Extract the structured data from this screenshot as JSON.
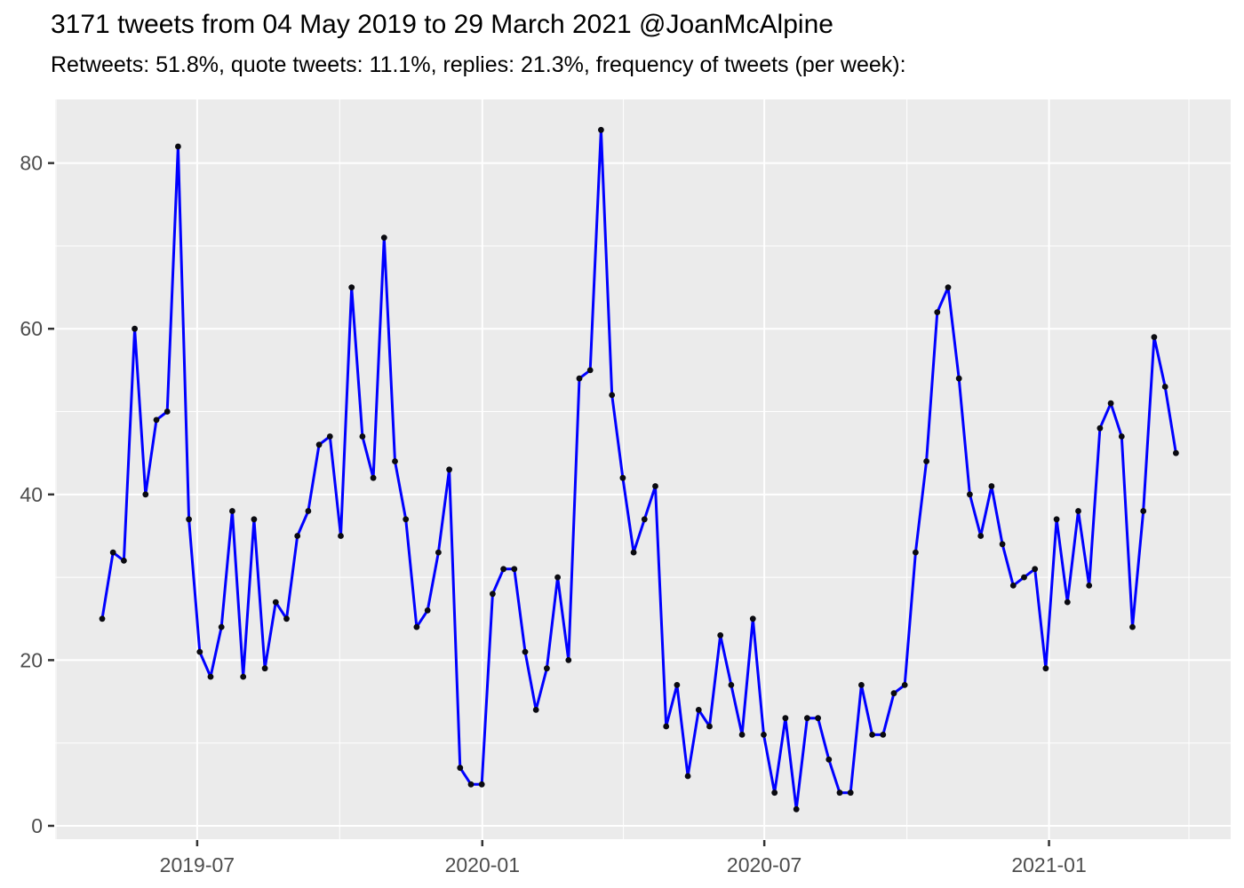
{
  "header": {
    "title": "3171 tweets from 04 May 2019 to 29 March 2021 @JoanMcAlpine",
    "subtitle": "Retweets: 51.8%, quote tweets: 11.1%, replies: 21.3%, frequency of tweets (per week):"
  },
  "chart_data": {
    "type": "line",
    "title": "3171 tweets from 04 May 2019 to 29 March 2021 @JoanMcAlpine",
    "subtitle": "Retweets: 51.8%, quote tweets: 11.1%, replies: 21.3%, frequency of tweets (per week):",
    "xlabel": "",
    "ylabel": "",
    "x_unit": "week index from first plotted week (weekly bins, 04 May 2019 to 29 March 2021)",
    "series": [
      {
        "name": "tweets per week",
        "values": [
          25,
          33,
          32,
          60,
          40,
          49,
          50,
          82,
          37,
          21,
          18,
          24,
          38,
          18,
          37,
          19,
          27,
          25,
          35,
          38,
          46,
          47,
          35,
          65,
          47,
          42,
          71,
          44,
          37,
          24,
          26,
          33,
          43,
          7,
          5,
          5,
          28,
          31,
          31,
          21,
          14,
          19,
          30,
          20,
          54,
          55,
          84,
          52,
          42,
          33,
          37,
          41,
          12,
          17,
          6,
          14,
          12,
          23,
          17,
          11,
          25,
          11,
          4,
          13,
          2,
          13,
          13,
          8,
          4,
          4,
          17,
          11,
          11,
          16,
          17,
          33,
          44,
          62,
          65,
          54,
          40,
          35,
          41,
          34,
          29,
          30,
          31,
          19,
          37,
          27,
          38,
          29,
          48,
          51,
          47,
          24,
          38,
          59,
          53,
          45
        ]
      }
    ],
    "x_axis": {
      "major_ticks": [
        {
          "label": "2019-07",
          "week": 8.76
        },
        {
          "label": "2020-01",
          "week": 35.05
        },
        {
          "label": "2020-07",
          "week": 61.05
        },
        {
          "label": "2021-01",
          "week": 87.3
        }
      ],
      "minor_gridline_weeks": [
        -4.26,
        21.9,
        48.06,
        74.2,
        100.2
      ],
      "range_weeks": [
        -4.34,
        104.05
      ]
    },
    "y_axis": {
      "major_ticks": [
        {
          "label": "0",
          "value": 0
        },
        {
          "label": "20",
          "value": 20
        },
        {
          "label": "40",
          "value": 40
        },
        {
          "label": "60",
          "value": 60
        },
        {
          "label": "80",
          "value": 80
        }
      ],
      "minor_gridline_values": [
        10,
        30,
        50,
        70
      ],
      "range": [
        -1.61,
        87.68
      ],
      "grid": true
    },
    "legend": "none",
    "colors": {
      "line": "#0000ff",
      "point": "#0a0a10",
      "panel_background": "#ebebeb",
      "grid_major": "#ffffff",
      "grid_minor": "#ffffff",
      "axis_text": "#4d4d4d",
      "tick_mark": "#333333",
      "title_text": "#000000",
      "outer_background": "#ffffff"
    }
  }
}
